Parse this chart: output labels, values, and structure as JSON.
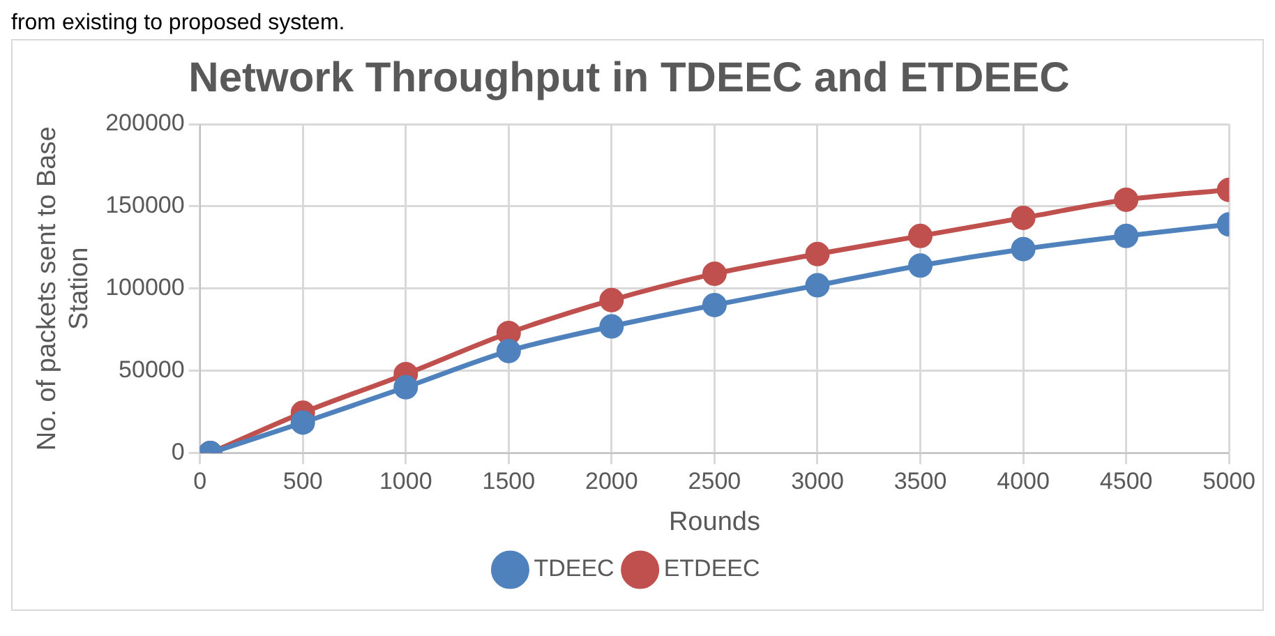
{
  "chart_data": {
    "type": "line",
    "title": "Network Throughput in TDEEC and ETDEEC",
    "xlabel": "Rounds",
    "ylabel": "No. of packets sent to Base Station",
    "annotations": [
      "from existing to proposed system."
    ],
    "x": [
      50,
      500,
      1000,
      1500,
      2000,
      2500,
      3000,
      3500,
      4000,
      4500,
      5000
    ],
    "series": [
      {
        "name": "TDEEC",
        "color": "#4f81bd",
        "values": [
          0,
          18500,
          40000,
          62000,
          77000,
          90000,
          102000,
          114000,
          124000,
          132000,
          139000
        ]
      },
      {
        "name": "ETDEEC",
        "color": "#c0504d",
        "values": [
          0,
          24500,
          48000,
          73000,
          93000,
          109000,
          121000,
          132000,
          143000,
          154000,
          160000
        ]
      }
    ],
    "xlim": [
      0,
      5000
    ],
    "xticks": [
      0,
      500,
      1000,
      1500,
      2000,
      2500,
      3000,
      3500,
      4000,
      4500,
      5000
    ],
    "ylim": [
      0,
      200000
    ],
    "yticks": [
      0,
      50000,
      100000,
      150000,
      200000
    ],
    "grid": true,
    "legend": "bottom",
    "marker": "circle",
    "line_style": "solid"
  }
}
